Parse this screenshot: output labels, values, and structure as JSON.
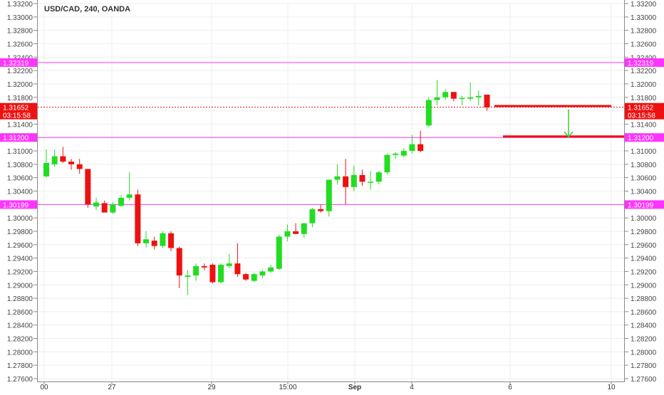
{
  "chart_data": {
    "type": "candlestick",
    "title": "USD/CAD, 240, OANDA",
    "ylim": [
      1.276,
      1.332
    ],
    "y_ticks": [
      "1.33200",
      "1.33000",
      "1.32800",
      "1.32600",
      "1.32400",
      "1.32200",
      "1.32000",
      "1.31800",
      "1.31600",
      "1.31400",
      "1.31200",
      "1.31000",
      "1.30800",
      "1.30600",
      "1.30400",
      "1.30200",
      "1.30000",
      "1.29800",
      "1.29600",
      "1.29400",
      "1.29200",
      "1.29000",
      "1.28800",
      "1.28600",
      "1.28400",
      "1.28200",
      "1.28000",
      "1.27800",
      "1.27600"
    ],
    "x_tick_labels": [
      "00",
      "27",
      "29",
      "15:00",
      "Sep",
      "4",
      "6",
      "10"
    ],
    "grid": true,
    "colors": {
      "up": "#22dd22",
      "down": "#ee1111",
      "level_line": "#ff33ff",
      "price_line": "#ee1111",
      "arrow": "#33cc33",
      "grid": "#eeeeee",
      "axis_text": "#444444"
    },
    "horizontal_levels": [
      {
        "price": 1.32319,
        "label": "1.32319"
      },
      {
        "price": 1.312,
        "label": "1.31200"
      },
      {
        "price": 1.30199,
        "label": "1.30199"
      }
    ],
    "current_price": {
      "price": 1.31652,
      "label": "1.31652",
      "countdown": "03:15:58"
    },
    "drawings": [
      {
        "type": "target-line",
        "price": 1.3167
      },
      {
        "type": "target-line",
        "price": 1.31215
      },
      {
        "type": "arrow-down",
        "from": 1.3162,
        "to": 1.3121
      }
    ],
    "candles": [
      {
        "o": 1.3062,
        "h": 1.3102,
        "l": 1.306,
        "c": 1.3082
      },
      {
        "o": 1.308,
        "h": 1.3102,
        "l": 1.3076,
        "c": 1.3092
      },
      {
        "o": 1.3092,
        "h": 1.3106,
        "l": 1.3082,
        "c": 1.3084
      },
      {
        "o": 1.3084,
        "h": 1.3088,
        "l": 1.3072,
        "c": 1.308
      },
      {
        "o": 1.308,
        "h": 1.3088,
        "l": 1.3066,
        "c": 1.3073
      },
      {
        "o": 1.3073,
        "h": 1.3073,
        "l": 1.3015,
        "c": 1.302
      },
      {
        "o": 1.3017,
        "h": 1.303,
        "l": 1.3012,
        "c": 1.3023
      },
      {
        "o": 1.3022,
        "h": 1.3026,
        "l": 1.3008,
        "c": 1.3008
      },
      {
        "o": 1.3008,
        "h": 1.3024,
        "l": 1.3006,
        "c": 1.302
      },
      {
        "o": 1.3018,
        "h": 1.3034,
        "l": 1.3016,
        "c": 1.303
      },
      {
        "o": 1.303,
        "h": 1.3068,
        "l": 1.3026,
        "c": 1.3035
      },
      {
        "o": 1.3035,
        "h": 1.3042,
        "l": 1.2958,
        "c": 1.2962
      },
      {
        "o": 1.2962,
        "h": 1.298,
        "l": 1.2956,
        "c": 1.2968
      },
      {
        "o": 1.2966,
        "h": 1.2972,
        "l": 1.2953,
        "c": 1.2958
      },
      {
        "o": 1.2958,
        "h": 1.298,
        "l": 1.2955,
        "c": 1.2977
      },
      {
        "o": 1.2977,
        "h": 1.298,
        "l": 1.295,
        "c": 1.2955
      },
      {
        "o": 1.2955,
        "h": 1.2957,
        "l": 1.2895,
        "c": 1.2914
      },
      {
        "o": 1.2912,
        "h": 1.2922,
        "l": 1.2885,
        "c": 1.2914
      },
      {
        "o": 1.2914,
        "h": 1.2932,
        "l": 1.2906,
        "c": 1.2928
      },
      {
        "o": 1.2928,
        "h": 1.2932,
        "l": 1.2922,
        "c": 1.2926
      },
      {
        "o": 1.293,
        "h": 1.2932,
        "l": 1.2902,
        "c": 1.2904
      },
      {
        "o": 1.2904,
        "h": 1.2932,
        "l": 1.2902,
        "c": 1.293
      },
      {
        "o": 1.2928,
        "h": 1.2946,
        "l": 1.2925,
        "c": 1.2932
      },
      {
        "o": 1.2932,
        "h": 1.2962,
        "l": 1.2912,
        "c": 1.2916
      },
      {
        "o": 1.2916,
        "h": 1.2918,
        "l": 1.2906,
        "c": 1.2908
      },
      {
        "o": 1.2906,
        "h": 1.2918,
        "l": 1.2904,
        "c": 1.2916
      },
      {
        "o": 1.2914,
        "h": 1.2922,
        "l": 1.291,
        "c": 1.292
      },
      {
        "o": 1.292,
        "h": 1.293,
        "l": 1.2918,
        "c": 1.2926
      },
      {
        "o": 1.2924,
        "h": 1.2975,
        "l": 1.2922,
        "c": 1.2972
      },
      {
        "o": 1.2972,
        "h": 1.299,
        "l": 1.2965,
        "c": 1.298
      },
      {
        "o": 1.298,
        "h": 1.2992,
        "l": 1.2976,
        "c": 1.2976
      },
      {
        "o": 1.2976,
        "h": 1.2992,
        "l": 1.297,
        "c": 1.2992
      },
      {
        "o": 1.2992,
        "h": 1.3015,
        "l": 1.2986,
        "c": 1.3013
      },
      {
        "o": 1.3013,
        "h": 1.302,
        "l": 1.3008,
        "c": 1.301
      },
      {
        "o": 1.301,
        "h": 1.3057,
        "l": 1.3002,
        "c": 1.3057
      },
      {
        "o": 1.3057,
        "h": 1.308,
        "l": 1.305,
        "c": 1.3062
      },
      {
        "o": 1.3062,
        "h": 1.3088,
        "l": 1.302,
        "c": 1.3046
      },
      {
        "o": 1.3046,
        "h": 1.3078,
        "l": 1.304,
        "c": 1.3064
      },
      {
        "o": 1.3064,
        "h": 1.3072,
        "l": 1.3048,
        "c": 1.3054
      },
      {
        "o": 1.3054,
        "h": 1.307,
        "l": 1.3042,
        "c": 1.3054
      },
      {
        "o": 1.3054,
        "h": 1.307,
        "l": 1.305,
        "c": 1.3068
      },
      {
        "o": 1.3068,
        "h": 1.3096,
        "l": 1.3065,
        "c": 1.3094
      },
      {
        "o": 1.3094,
        "h": 1.3098,
        "l": 1.3088,
        "c": 1.3096
      },
      {
        "o": 1.3093,
        "h": 1.3104,
        "l": 1.309,
        "c": 1.31
      },
      {
        "o": 1.31,
        "h": 1.3124,
        "l": 1.3096,
        "c": 1.311
      },
      {
        "o": 1.311,
        "h": 1.313,
        "l": 1.3098,
        "c": 1.31
      },
      {
        "o": 1.3138,
        "h": 1.318,
        "l": 1.3136,
        "c": 1.3176
      },
      {
        "o": 1.3176,
        "h": 1.3206,
        "l": 1.3168,
        "c": 1.318
      },
      {
        "o": 1.318,
        "h": 1.3192,
        "l": 1.3176,
        "c": 1.3188
      },
      {
        "o": 1.3188,
        "h": 1.3188,
        "l": 1.3174,
        "c": 1.3178
      },
      {
        "o": 1.3178,
        "h": 1.3182,
        "l": 1.3168,
        "c": 1.3179
      },
      {
        "o": 1.3178,
        "h": 1.3202,
        "l": 1.3174,
        "c": 1.318
      },
      {
        "o": 1.318,
        "h": 1.319,
        "l": 1.3168,
        "c": 1.3182
      },
      {
        "o": 1.3184,
        "h": 1.3184,
        "l": 1.316,
        "c": 1.3165
      }
    ]
  }
}
